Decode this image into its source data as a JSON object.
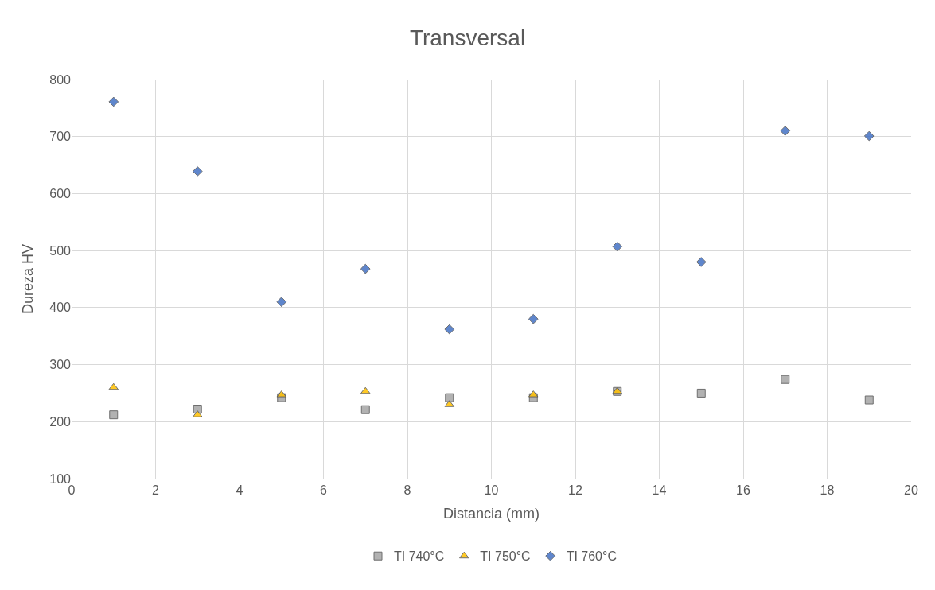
{
  "chart_data": {
    "type": "scatter",
    "title": "Transversal",
    "xlabel": "Distancia (mm)",
    "ylabel": "Dureza HV",
    "xlim": [
      0,
      20
    ],
    "xticks": [
      0,
      2,
      4,
      6,
      8,
      10,
      12,
      14,
      16,
      18,
      20
    ],
    "ylim": [
      100,
      800
    ],
    "yticks": [
      100,
      200,
      300,
      400,
      500,
      600,
      700,
      800
    ],
    "grid": true,
    "legend": "bottom",
    "series": [
      {
        "name": "TI 740°C",
        "color": "#a5a5a5",
        "marker": "square",
        "x": [
          1,
          3,
          5,
          7,
          9,
          11,
          13,
          15,
          17,
          19
        ],
        "values": [
          212,
          222,
          242,
          221,
          242,
          242,
          253,
          250,
          274,
          238
        ]
      },
      {
        "name": "TI 750°C",
        "color": "#ffc000",
        "marker": "triangle",
        "x": [
          1,
          3,
          5,
          7,
          9,
          11,
          13
        ],
        "values": [
          260,
          212,
          247,
          253,
          230,
          247,
          253
        ]
      },
      {
        "name": "TI 760°C",
        "color": "#4472c4",
        "marker": "diamond",
        "x": [
          1,
          3,
          5,
          7,
          9,
          11,
          13,
          15,
          17,
          19
        ],
        "values": [
          761,
          639,
          410,
          468,
          362,
          380,
          507,
          480,
          710,
          701
        ]
      }
    ]
  }
}
